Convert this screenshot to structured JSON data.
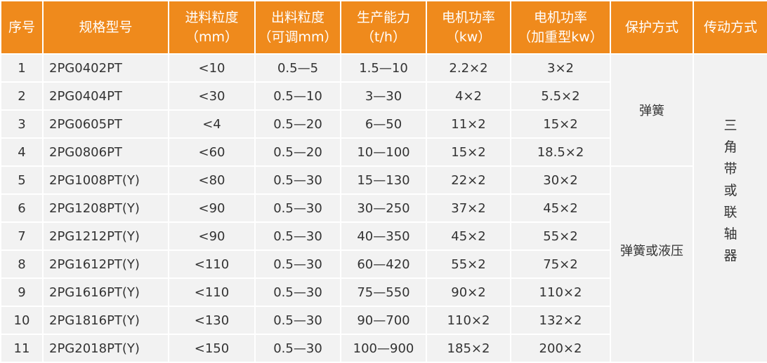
{
  "header_color": "#ef8a1c",
  "columns": [
    [
      "序号",
      ""
    ],
    [
      "规格型号",
      ""
    ],
    [
      "进料粒度",
      "（mm）"
    ],
    [
      "出料粒度",
      "（可调mm）"
    ],
    [
      "生产能力",
      "（t/h）"
    ],
    [
      "电机功率",
      "（kw）"
    ],
    [
      "电机功率",
      "（加重型kw）"
    ],
    [
      "保护方式",
      ""
    ],
    [
      "传动方式",
      ""
    ]
  ],
  "rows": [
    [
      "1",
      "2PG0402PT",
      "<10",
      "0.5—5",
      "1.5—10",
      "2.2×2",
      "3×2"
    ],
    [
      "2",
      "2PG0404PT",
      "<30",
      "0.5—10",
      "3—30",
      "4×2",
      "5.5×2"
    ],
    [
      "3",
      "2PG0605PT",
      "<4",
      "0.5—20",
      "6—50",
      "11×2",
      "15×2"
    ],
    [
      "4",
      "2PG0806PT",
      "<60",
      "0.5—20",
      "10—100",
      "15×2",
      "18.5×2"
    ],
    [
      "5",
      "2PG1008PT(Y)",
      "<80",
      "0.5—30",
      "15—130",
      "22×2",
      "30×2"
    ],
    [
      "6",
      "2PG1208PT(Y)",
      "<90",
      "0.5—30",
      "30—250",
      "37×2",
      "45×2"
    ],
    [
      "7",
      "2PG1212PT(Y)",
      "<90",
      "0.5—30",
      "40—350",
      "45×2",
      "55×2"
    ],
    [
      "8",
      "2PG1612PT(Y)",
      "<110",
      "0.5—30",
      "60—420",
      "55×2",
      "75×2"
    ],
    [
      "9",
      "2PG1616PT(Y)",
      "<110",
      "0.5—30",
      "75—550",
      "90×2",
      "110×2"
    ],
    [
      "10",
      "2PG1816PT(Y)",
      "<130",
      "0.5—30",
      "90—700",
      "110×2",
      "132×2"
    ],
    [
      "11",
      "2PG2018PT(Y)",
      "<150",
      "0.5—30",
      "100—900",
      "185×2",
      "200×2"
    ]
  ],
  "protection": [
    "弹簧",
    "弹簧或液压"
  ],
  "transmission": "三角带或联轴器"
}
